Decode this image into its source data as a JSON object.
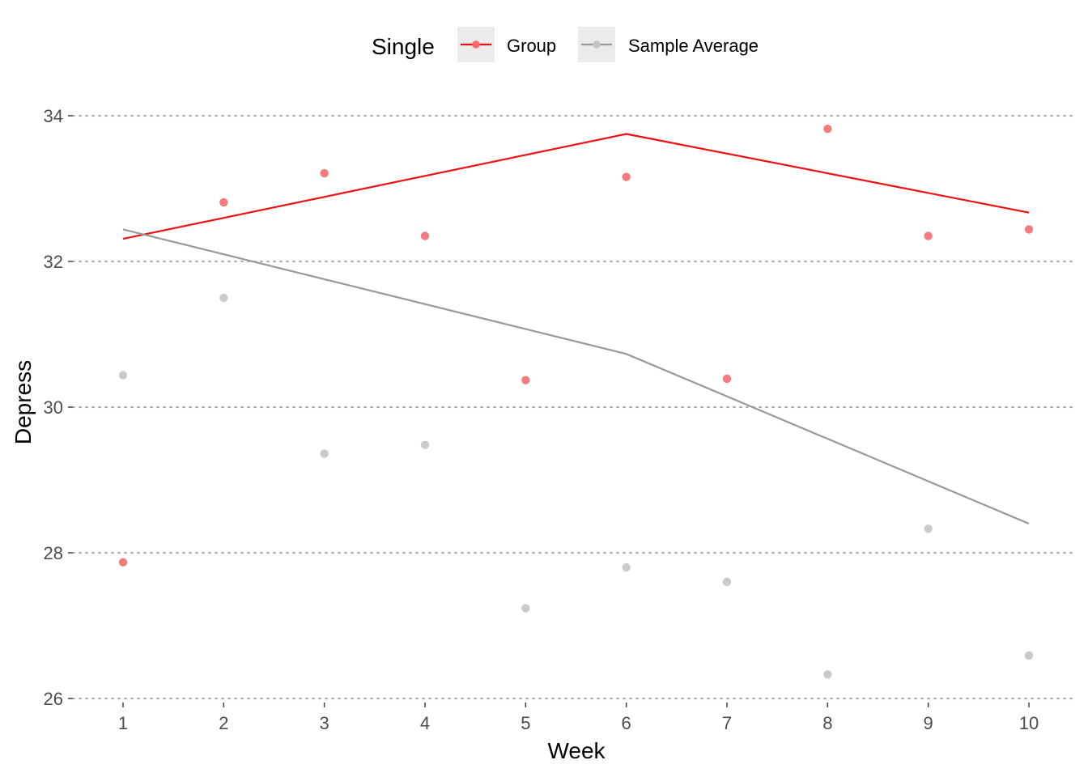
{
  "chart_data": {
    "type": "line",
    "title": "",
    "xlabel": "Week",
    "ylabel": "Depress",
    "x": [
      1,
      2,
      3,
      4,
      5,
      6,
      7,
      8,
      9,
      10
    ],
    "x_ticks": [
      "1",
      "2",
      "3",
      "4",
      "5",
      "6",
      "7",
      "8",
      "9",
      "10"
    ],
    "xlim": [
      0.6,
      10.4
    ],
    "ylim": [
      26,
      34
    ],
    "y_ticks": [
      "26",
      "28",
      "30",
      "32",
      "34"
    ],
    "grid": "horizontal dotted",
    "legend": {
      "position": "top",
      "title": "Single",
      "entries": [
        "Group",
        "Sample Average"
      ]
    },
    "series": [
      {
        "name": "Group",
        "color": "#ee1111",
        "point_color": "#f26b6f",
        "points": [
          27.87,
          32.81,
          33.21,
          32.35,
          30.37,
          33.16,
          30.39,
          33.82,
          32.35,
          32.44
        ],
        "line_x": [
          1,
          6,
          10
        ],
        "line_y": [
          32.31,
          33.75,
          32.67
        ]
      },
      {
        "name": "Sample Average",
        "color": "#999999",
        "point_color": "#c4c4c4",
        "points": [
          30.44,
          31.5,
          29.36,
          29.48,
          27.24,
          27.8,
          27.6,
          26.33,
          28.33,
          26.59
        ],
        "line_x": [
          1,
          6,
          10
        ],
        "line_y": [
          32.44,
          30.73,
          28.4
        ]
      }
    ]
  }
}
